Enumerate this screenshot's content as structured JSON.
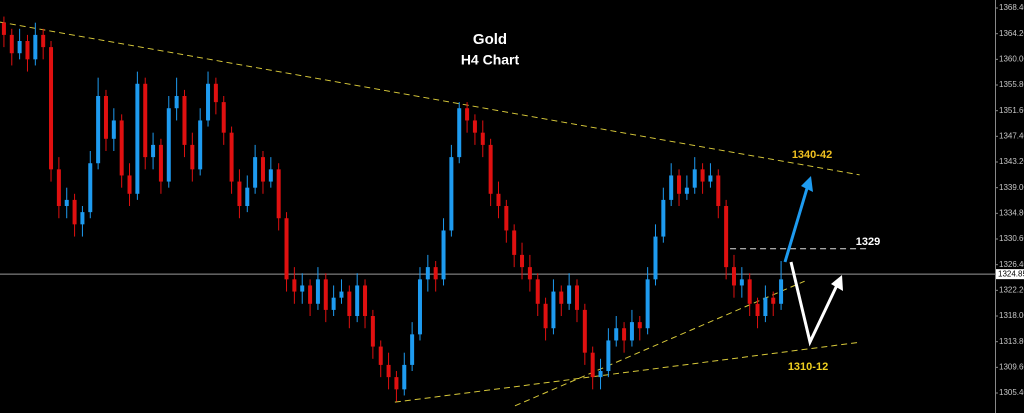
{
  "chart_data": {
    "type": "candlestick",
    "title": "Gold",
    "subtitle": "H4 Chart",
    "up_color": "#1e9bf0",
    "down_color": "#e01010",
    "ylim": [
      1302.13,
      1369.71
    ],
    "xlim": [
      -0.5,
      126.25
    ],
    "yticks": [
      {
        "value": 1368.4,
        "label": "1368.40"
      },
      {
        "value": 1364.2,
        "label": "1364.20"
      },
      {
        "value": 1360,
        "label": "1360.00"
      },
      {
        "value": 1355.8,
        "label": "1355.80"
      },
      {
        "value": 1351.6,
        "label": "1351.60"
      },
      {
        "value": 1347.4,
        "label": "1347.40"
      },
      {
        "value": 1343.2,
        "label": "1343.20"
      },
      {
        "value": 1339,
        "label": "1339.00"
      },
      {
        "value": 1334.8,
        "label": "1334.80"
      },
      {
        "value": 1330.6,
        "label": "1330.60"
      },
      {
        "value": 1326.4,
        "label": "1326.40"
      },
      {
        "value": 1322.2,
        "label": "1322.20"
      },
      {
        "value": 1318,
        "label": "1318.00"
      },
      {
        "value": 1313.8,
        "label": "1313.80"
      },
      {
        "value": 1309.6,
        "label": "1309.60"
      },
      {
        "value": 1305.4,
        "label": "1305.40"
      }
    ],
    "current_price": {
      "value": 1324.85,
      "label": "1324.85"
    },
    "open": [
      1366,
      1364,
      1361,
      1363,
      1360,
      1364,
      1362,
      1342,
      1336,
      1337,
      1333,
      1335,
      1343,
      1354,
      1347,
      1350,
      1341,
      1338,
      1356,
      1344,
      1346,
      1340,
      1352,
      1354,
      1346,
      1342,
      1350,
      1356,
      1353,
      1348,
      1340,
      1336,
      1339,
      1344,
      1340,
      1342,
      1334,
      1324,
      1322,
      1323,
      1320,
      1324,
      1319,
      1321,
      1322,
      1318,
      1323,
      1318,
      1313,
      1310,
      1308,
      1306,
      1310,
      1315,
      1324,
      1326,
      1324,
      1332,
      1344,
      1352,
      1350,
      1348,
      1346,
      1338,
      1336,
      1332,
      1328,
      1326,
      1324,
      1320,
      1316,
      1322,
      1320,
      1323,
      1319,
      1312,
      1308,
      1309,
      1314,
      1316,
      1314,
      1317,
      1316,
      1324,
      1331,
      1337,
      1341,
      1338,
      1339,
      1342,
      1340,
      1341,
      1336,
      1326,
      1323,
      1324,
      1320,
      1318,
      1321,
      1320
    ],
    "high": [
      1367,
      1365,
      1365,
      1364,
      1366,
      1365,
      1363,
      1344,
      1339,
      1338,
      1336,
      1345,
      1357,
      1355,
      1352,
      1351,
      1343,
      1358,
      1357,
      1348,
      1347,
      1354,
      1357,
      1355,
      1348,
      1352,
      1358,
      1357,
      1354,
      1349,
      1342,
      1341,
      1346,
      1345,
      1344,
      1343,
      1335,
      1326,
      1325,
      1324,
      1326,
      1325,
      1323,
      1324,
      1323,
      1325,
      1324,
      1319,
      1314,
      1312,
      1309,
      1312,
      1317,
      1326,
      1328,
      1327,
      1334,
      1346,
      1353,
      1353,
      1351,
      1350,
      1347,
      1340,
      1337,
      1333,
      1330,
      1328,
      1325,
      1321,
      1324,
      1323,
      1325,
      1324,
      1320,
      1313,
      1311,
      1316,
      1318,
      1317,
      1319,
      1318,
      1326,
      1333,
      1339,
      1343,
      1342,
      1341,
      1344,
      1343,
      1343,
      1342,
      1337,
      1328,
      1326,
      1325,
      1321,
      1323,
      1322,
      1327
    ],
    "low": [
      1362,
      1359,
      1360,
      1358,
      1359,
      1360,
      1340,
      1334,
      1334,
      1331,
      1331,
      1334,
      1342,
      1345,
      1345,
      1339,
      1336,
      1337,
      1342,
      1342,
      1338,
      1339,
      1350,
      1344,
      1340,
      1341,
      1349,
      1351,
      1346,
      1338,
      1334,
      1335,
      1338,
      1338,
      1339,
      1332,
      1322,
      1320,
      1320,
      1318,
      1319,
      1317,
      1318,
      1320,
      1316,
      1317,
      1316,
      1311,
      1308,
      1306,
      1304,
      1305,
      1309,
      1314,
      1322,
      1322,
      1323,
      1331,
      1343,
      1348,
      1346,
      1344,
      1336,
      1334,
      1330,
      1326,
      1324,
      1322,
      1318,
      1314,
      1315,
      1318,
      1319,
      1317,
      1310,
      1306,
      1306,
      1308,
      1313,
      1312,
      1313,
      1314,
      1315,
      1323,
      1330,
      1336,
      1336,
      1337,
      1338,
      1338,
      1339,
      1334,
      1324,
      1321,
      1321,
      1318,
      1316,
      1317,
      1318,
      1319
    ],
    "close": [
      1364,
      1361,
      1363,
      1360,
      1364,
      1362,
      1342,
      1336,
      1337,
      1333,
      1335,
      1343,
      1354,
      1347,
      1350,
      1341,
      1338,
      1356,
      1344,
      1346,
      1340,
      1352,
      1354,
      1346,
      1342,
      1350,
      1356,
      1353,
      1348,
      1340,
      1336,
      1339,
      1344,
      1340,
      1342,
      1334,
      1324,
      1322,
      1323,
      1320,
      1324,
      1319,
      1321,
      1322,
      1318,
      1323,
      1318,
      1313,
      1310,
      1308,
      1306,
      1310,
      1315,
      1324,
      1326,
      1324,
      1332,
      1344,
      1352,
      1350,
      1348,
      1346,
      1338,
      1336,
      1332,
      1328,
      1326,
      1324,
      1320,
      1316,
      1322,
      1320,
      1323,
      1319,
      1312,
      1308,
      1309,
      1314,
      1316,
      1314,
      1317,
      1316,
      1324,
      1331,
      1337,
      1341,
      1338,
      1339,
      1342,
      1340,
      1341,
      1336,
      1326,
      1323,
      1324,
      1320,
      1318,
      1321,
      1320,
      1324
    ],
    "trendlines": [
      {
        "x": [
          -0.5,
          109
        ],
        "y": [
          1366.1,
          1341.1
        ],
        "color": "#d8c93a"
      },
      {
        "x": [
          49.8,
          109
        ],
        "y": [
          1303.9,
          1313.7
        ],
        "color": "#d8c93a"
      },
      {
        "x": [
          65.1,
          102
        ],
        "y": [
          1303.3,
          1323.7
        ],
        "color": "#d8c93a"
      },
      {
        "x": [
          92.5,
          110.3
        ],
        "y": [
          1329,
          1329
        ],
        "color": "#dddddd"
      }
    ],
    "annotations": [
      "1340-42",
      "1329",
      "1310-12"
    ]
  }
}
